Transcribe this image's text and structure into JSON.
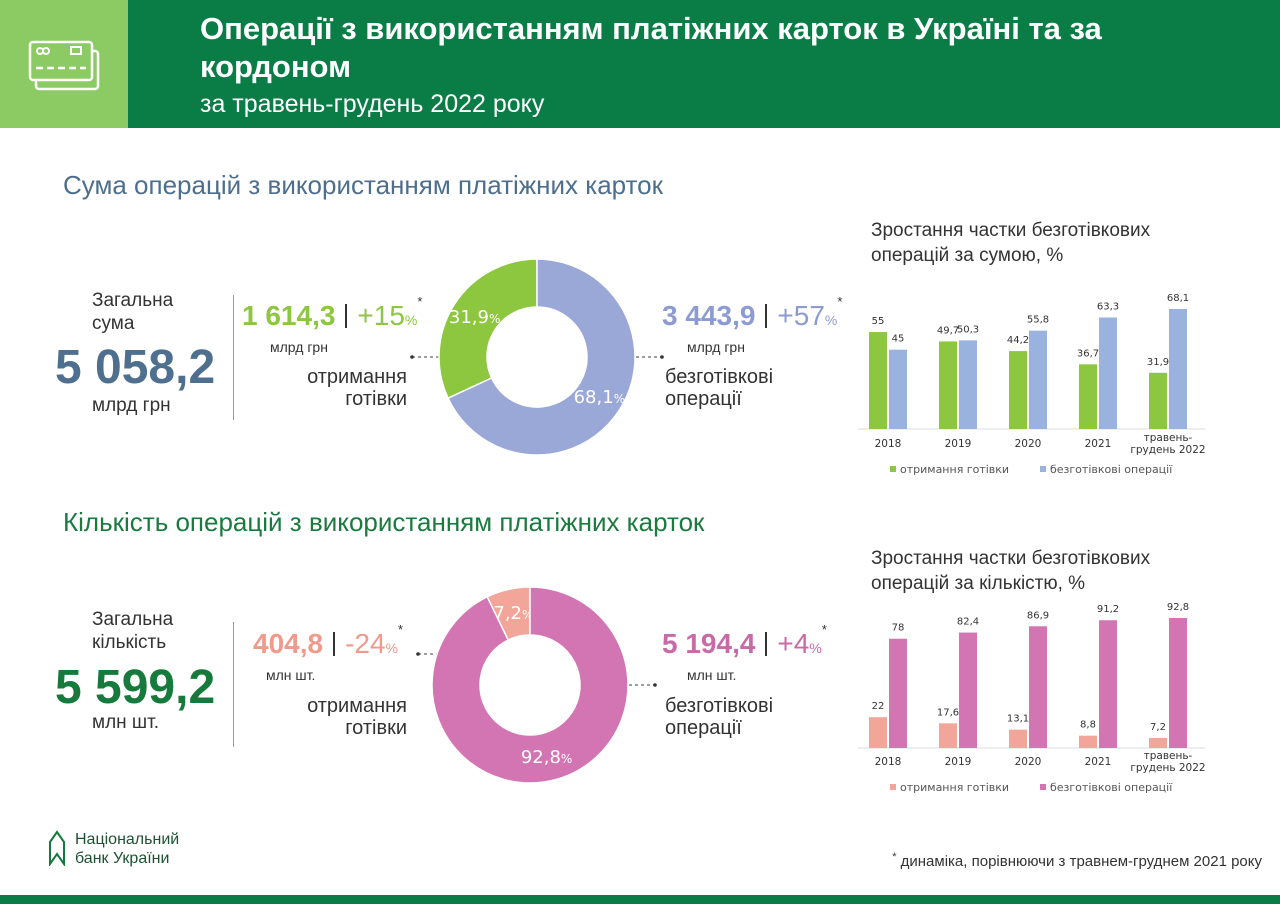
{
  "header": {
    "title": "Операції з використанням платіжних карток в Україні та за кордоном",
    "subtitle": "за травень-грудень 2022 року"
  },
  "sections": [
    {
      "title": "Сума операцій з використанням платіжних карток",
      "total_label": "Загальна сума",
      "total": "5 058,2",
      "total_unit": "млрд грн",
      "cash": {
        "value": "1 614,3",
        "change": "+15",
        "change_unit": "%",
        "mark": "*",
        "unit": "млрд грн",
        "label": "отримання готівки"
      },
      "cashless": {
        "value": "3 443,9",
        "change": "+57",
        "change_unit": "%",
        "mark": "*",
        "unit": "млрд грн",
        "label": "безготівкові операції"
      }
    },
    {
      "title": "Кількість операцій з використанням платіжних карток",
      "total_label": "Загальна кількість",
      "total": "5 599,2",
      "total_unit": "млн шт.",
      "cash": {
        "value": "404,8",
        "change": "-24",
        "change_unit": "%",
        "mark": "*",
        "unit": "млн шт.",
        "label": "отримання готівки"
      },
      "cashless": {
        "value": "5 194,4",
        "change": "+4",
        "change_unit": "%",
        "mark": "*",
        "unit": "млн шт.",
        "label": "безготівкові операції"
      }
    }
  ],
  "chart_data": [
    {
      "type": "pie",
      "values": [
        31.9,
        68.1
      ],
      "value_labels": [
        "31,9",
        "68,1"
      ],
      "unit": "%",
      "colors": [
        "#8dc63f",
        "#9aa8d8"
      ]
    },
    {
      "type": "bar",
      "title": "Зростання частки безготівкових операцій за сумою, %",
      "categories": [
        "2018",
        "2019",
        "2020",
        "2021",
        "травень-грудень 2022"
      ],
      "series": [
        {
          "name": "отримання готівки",
          "color": "#8dc63f",
          "values": [
            55,
            49.7,
            44.2,
            36.7,
            31.9
          ],
          "value_labels": [
            "55",
            "49,7",
            "44,2",
            "36,7",
            "31,9"
          ]
        },
        {
          "name": "безготівкові операції",
          "color": "#9ab3de",
          "values": [
            45,
            50.3,
            55.8,
            63.3,
            68.1
          ],
          "value_labels": [
            "45",
            "50,3",
            "55,8",
            "63,3",
            "68,1"
          ]
        }
      ]
    },
    {
      "type": "pie",
      "values": [
        7.2,
        92.8
      ],
      "value_labels": [
        "7,2",
        "92,8"
      ],
      "unit": "%",
      "colors": [
        "#f2a69a",
        "#d475b3"
      ]
    },
    {
      "type": "bar",
      "title": "Зростання частки безготівкових операцій за кількістю, %",
      "categories": [
        "2018",
        "2019",
        "2020",
        "2021",
        "травень-грудень 2022"
      ],
      "series": [
        {
          "name": "отримання готівки",
          "color": "#f2a69a",
          "values": [
            22,
            17.6,
            13.1,
            8.8,
            7.2
          ],
          "value_labels": [
            "22",
            "17,6",
            "13,1",
            "8,8",
            "7,2"
          ]
        },
        {
          "name": "безготівкові операції",
          "color": "#d475b3",
          "values": [
            78,
            82.4,
            86.9,
            91.2,
            92.8
          ],
          "value_labels": [
            "78",
            "82,4",
            "86,9",
            "91,2",
            "92,8"
          ]
        }
      ]
    }
  ],
  "footer": {
    "bank": "Національний банк України",
    "note_mark": "*",
    "note": "динаміка, порівнюючи з травнем-груднем 2021 року"
  }
}
